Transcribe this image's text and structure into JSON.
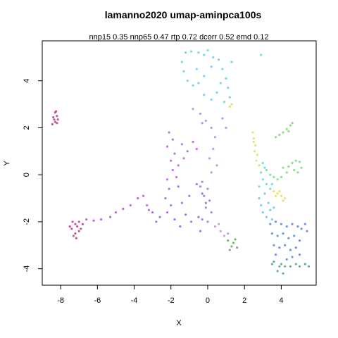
{
  "chart_data": {
    "type": "scatter",
    "title": "lamanno2020 umap-aminpca100s",
    "subtitle": "nnp15 0.35 nnp65 0.47 rtp 0.72 dcorr 0.52 emd 0.12",
    "xlabel": "X",
    "ylabel": "Y",
    "xlim": [
      -9,
      5.9
    ],
    "ylim": [
      -4.7,
      5.7
    ],
    "xticks": [
      "-8",
      "-6",
      "-4",
      "-2",
      "0",
      "2",
      "4"
    ],
    "yticks": [
      "-4",
      "-2",
      "0",
      "2",
      "4"
    ],
    "grid": false,
    "legend": "none",
    "clusters": [
      {
        "color": "#b0247f",
        "points": [
          [
            -8.3,
            2.65
          ],
          [
            -8.2,
            2.5
          ],
          [
            -8.35,
            2.35
          ],
          [
            -8.2,
            2.2
          ],
          [
            -8.45,
            2.15
          ],
          [
            -8.15,
            2.35
          ],
          [
            -8.3,
            2.25
          ],
          [
            -8.4,
            2.45
          ],
          [
            -8.25,
            2.7
          ]
        ]
      },
      {
        "color": "#b0207f",
        "points": [
          [
            -7.2,
            -2.1
          ],
          [
            -7.4,
            -2.3
          ],
          [
            -7.0,
            -2.4
          ],
          [
            -7.3,
            -2.6
          ],
          [
            -7.1,
            -2.2
          ],
          [
            -6.9,
            -2.3
          ],
          [
            -7.5,
            -2.2
          ],
          [
            -7.2,
            -2.5
          ],
          [
            -7.0,
            -2.0
          ],
          [
            -7.35,
            -2.0
          ],
          [
            -6.8,
            -2.1
          ],
          [
            -7.15,
            -2.7
          ]
        ]
      },
      {
        "color": "#9b37d6",
        "points": [
          [
            -6.6,
            -1.9
          ],
          [
            -6.2,
            -1.95
          ],
          [
            -5.8,
            -1.9
          ],
          [
            -5.3,
            -1.8
          ],
          [
            -5.0,
            -1.6
          ],
          [
            -4.6,
            -1.45
          ],
          [
            -4.2,
            -1.3
          ],
          [
            -3.8,
            -1.0
          ],
          [
            -3.5,
            -0.9
          ],
          [
            -3.3,
            -1.3
          ]
        ]
      },
      {
        "color": "#8a45e3",
        "points": [
          [
            -3.2,
            -1.5
          ],
          [
            -3.0,
            -1.6
          ],
          [
            -2.6,
            -1.8
          ],
          [
            -2.2,
            -1.6
          ],
          [
            -1.8,
            -1.9
          ],
          [
            -2.0,
            -1.3
          ],
          [
            -2.3,
            -1.0
          ],
          [
            -2.1,
            -0.6
          ],
          [
            -1.6,
            -0.5
          ],
          [
            -1.4,
            -1.2
          ],
          [
            -1.2,
            -1.7
          ],
          [
            -0.9,
            -2.0
          ],
          [
            -0.5,
            -1.8
          ],
          [
            -1.0,
            -0.9
          ],
          [
            -0.3,
            -0.8
          ],
          [
            -0.1,
            -1.2
          ],
          [
            -0.6,
            -0.4
          ],
          [
            -1.5,
            -2.2
          ],
          [
            -2.8,
            -2.0
          ],
          [
            -0.4,
            -2.4
          ]
        ]
      },
      {
        "color": "#a54ad8",
        "points": [
          [
            -2.1,
            1.8
          ],
          [
            -1.9,
            1.5
          ],
          [
            -2.2,
            1.2
          ],
          [
            -1.8,
            0.9
          ],
          [
            -2.0,
            0.6
          ],
          [
            -1.6,
            0.4
          ],
          [
            -1.3,
            0.7
          ],
          [
            -1.1,
            1.0
          ],
          [
            -1.4,
            1.3
          ],
          [
            -0.8,
            1.4
          ],
          [
            -0.6,
            1.1
          ],
          [
            -1.9,
            0.2
          ],
          [
            -2.2,
            -0.2
          ],
          [
            -1.7,
            -0.1
          ]
        ]
      },
      {
        "color": "#6d6ce0",
        "points": [
          [
            -0.3,
            -0.3
          ],
          [
            0.0,
            -0.6
          ],
          [
            -0.2,
            -0.9
          ],
          [
            0.1,
            -1.1
          ],
          [
            -0.4,
            -0.5
          ],
          [
            -0.1,
            -1.4
          ],
          [
            0.2,
            -1.6
          ],
          [
            0.0,
            -2.0
          ],
          [
            -0.3,
            -1.9
          ]
        ]
      },
      {
        "color": "#c07ae0",
        "points": [
          [
            0.4,
            -2.2
          ],
          [
            0.7,
            -2.4
          ],
          [
            0.9,
            -2.6
          ],
          [
            1.1,
            -2.5
          ],
          [
            0.6,
            -2.1
          ]
        ]
      },
      {
        "color": "#4f9e45",
        "points": [
          [
            1.1,
            -2.8
          ],
          [
            1.4,
            -2.9
          ],
          [
            1.6,
            -3.1
          ],
          [
            1.3,
            -3.05
          ],
          [
            1.5,
            -2.75
          ],
          [
            1.2,
            -3.2
          ]
        ]
      },
      {
        "color": "#52c4e8",
        "points": [
          [
            -1.2,
            5.2
          ],
          [
            -0.9,
            5.25
          ],
          [
            -0.5,
            5.2
          ],
          [
            -0.2,
            5.1
          ],
          [
            -1.4,
            4.8
          ],
          [
            -1.3,
            4.4
          ],
          [
            -1.1,
            4.0
          ],
          [
            -0.8,
            3.8
          ],
          [
            -0.5,
            3.9
          ],
          [
            -0.2,
            4.2
          ],
          [
            0.2,
            4.6
          ],
          [
            0.3,
            5.0
          ],
          [
            0.6,
            4.9
          ],
          [
            0.8,
            4.5
          ],
          [
            1.0,
            4.1
          ],
          [
            1.1,
            3.7
          ],
          [
            1.2,
            3.3
          ],
          [
            0.9,
            3.1
          ],
          [
            0.5,
            3.5
          ],
          [
            0.2,
            3.2
          ],
          [
            -0.2,
            3.4
          ],
          [
            0.7,
            3.9
          ],
          [
            1.3,
            4.8
          ],
          [
            0.0,
            5.3
          ],
          [
            -0.6,
            4.5
          ]
        ]
      },
      {
        "color": "#a07ae0",
        "points": [
          [
            -0.8,
            2.8
          ],
          [
            -0.4,
            2.6
          ],
          [
            -0.1,
            2.3
          ],
          [
            0.2,
            2.0
          ],
          [
            0.4,
            1.6
          ],
          [
            0.3,
            1.1
          ],
          [
            0.1,
            0.7
          ],
          [
            0.5,
            0.4
          ],
          [
            0.2,
            0.1
          ],
          [
            -0.3,
            2.2
          ],
          [
            0.8,
            2.4
          ],
          [
            1.0,
            2.0
          ]
        ]
      },
      {
        "color": "#c9e04a",
        "points": [
          [
            1.2,
            2.9
          ],
          [
            1.3,
            3.0
          ]
        ]
      },
      {
        "color": "#4ae0b0",
        "points": [
          [
            2.9,
            5.1
          ]
        ]
      },
      {
        "color": "#c8e63c",
        "points": [
          [
            2.45,
            1.8
          ],
          [
            2.5,
            1.55
          ],
          [
            2.6,
            1.25
          ],
          [
            2.55,
            1.0
          ],
          [
            2.7,
            0.85
          ],
          [
            2.65,
            0.6
          ],
          [
            2.8,
            0.4
          ],
          [
            2.5,
            1.4
          ]
        ]
      },
      {
        "color": "#62d65a",
        "points": [
          [
            3.9,
            1.7
          ],
          [
            4.1,
            1.8
          ],
          [
            4.3,
            1.95
          ],
          [
            4.5,
            2.1
          ],
          [
            4.6,
            2.2
          ],
          [
            4.4,
            1.85
          ],
          [
            3.7,
            1.6
          ]
        ]
      },
      {
        "color": "#6ad66a",
        "points": [
          [
            4.1,
            0.3
          ],
          [
            4.4,
            0.35
          ],
          [
            4.6,
            0.5
          ],
          [
            4.8,
            0.6
          ],
          [
            5.0,
            0.55
          ],
          [
            5.1,
            0.3
          ],
          [
            4.9,
            0.1
          ],
          [
            4.7,
            0.2
          ],
          [
            4.3,
            0.1
          ],
          [
            4.0,
            -0.1
          ],
          [
            3.8,
            -0.2
          ],
          [
            3.6,
            -0.1
          ],
          [
            3.4,
            0.0
          ],
          [
            3.2,
            0.2
          ]
        ]
      },
      {
        "color": "#42d6c8",
        "points": [
          [
            3.0,
            0.5
          ],
          [
            3.1,
            0.3
          ],
          [
            2.9,
            0.1
          ],
          [
            3.0,
            -0.2
          ],
          [
            3.2,
            -0.4
          ],
          [
            3.4,
            -0.6
          ],
          [
            3.5,
            -0.4
          ],
          [
            2.8,
            -0.5
          ]
        ]
      },
      {
        "color": "#e6d83a",
        "points": [
          [
            3.6,
            -0.7
          ],
          [
            3.8,
            -0.8
          ],
          [
            4.0,
            -0.9
          ],
          [
            4.2,
            -1.0
          ],
          [
            3.9,
            -0.7
          ],
          [
            4.1,
            -1.1
          ],
          [
            3.7,
            -0.9
          ]
        ]
      },
      {
        "color": "#5ab8e0",
        "points": [
          [
            2.8,
            -1.0
          ],
          [
            2.9,
            -1.3
          ],
          [
            3.0,
            -1.6
          ],
          [
            3.2,
            -1.8
          ],
          [
            3.4,
            -1.5
          ],
          [
            3.6,
            -1.4
          ],
          [
            3.3,
            -1.2
          ],
          [
            3.1,
            -0.8
          ],
          [
            3.5,
            -1.9
          ]
        ]
      },
      {
        "color": "#4870e0",
        "points": [
          [
            3.4,
            -2.1
          ],
          [
            3.7,
            -2.0
          ],
          [
            4.0,
            -2.1
          ],
          [
            4.3,
            -2.2
          ],
          [
            4.6,
            -2.1
          ],
          [
            4.9,
            -2.2
          ],
          [
            5.1,
            -2.3
          ],
          [
            5.3,
            -2.1
          ],
          [
            5.4,
            -2.4
          ],
          [
            3.5,
            -2.5
          ],
          [
            3.8,
            -2.6
          ],
          [
            4.1,
            -2.5
          ],
          [
            4.4,
            -2.7
          ],
          [
            4.7,
            -2.6
          ],
          [
            5.0,
            -2.8
          ],
          [
            3.6,
            -3.0
          ],
          [
            3.9,
            -3.1
          ],
          [
            4.2,
            -3.0
          ],
          [
            4.5,
            -3.2
          ],
          [
            4.8,
            -3.1
          ],
          [
            5.0,
            -3.4
          ],
          [
            3.7,
            -3.4
          ],
          [
            4.3,
            -3.6
          ],
          [
            4.6,
            -3.5
          ]
        ]
      },
      {
        "color": "#2f9e7c",
        "points": [
          [
            3.6,
            -3.7
          ],
          [
            3.9,
            -3.9
          ],
          [
            4.2,
            -3.9
          ],
          [
            4.5,
            -3.9
          ],
          [
            4.8,
            -3.8
          ],
          [
            5.0,
            -3.9
          ],
          [
            5.3,
            -3.8
          ],
          [
            5.5,
            -3.9
          ],
          [
            3.8,
            -4.1
          ],
          [
            4.1,
            -4.2
          ],
          [
            3.5,
            -3.8
          ],
          [
            4.0,
            -3.8
          ]
        ]
      }
    ]
  }
}
